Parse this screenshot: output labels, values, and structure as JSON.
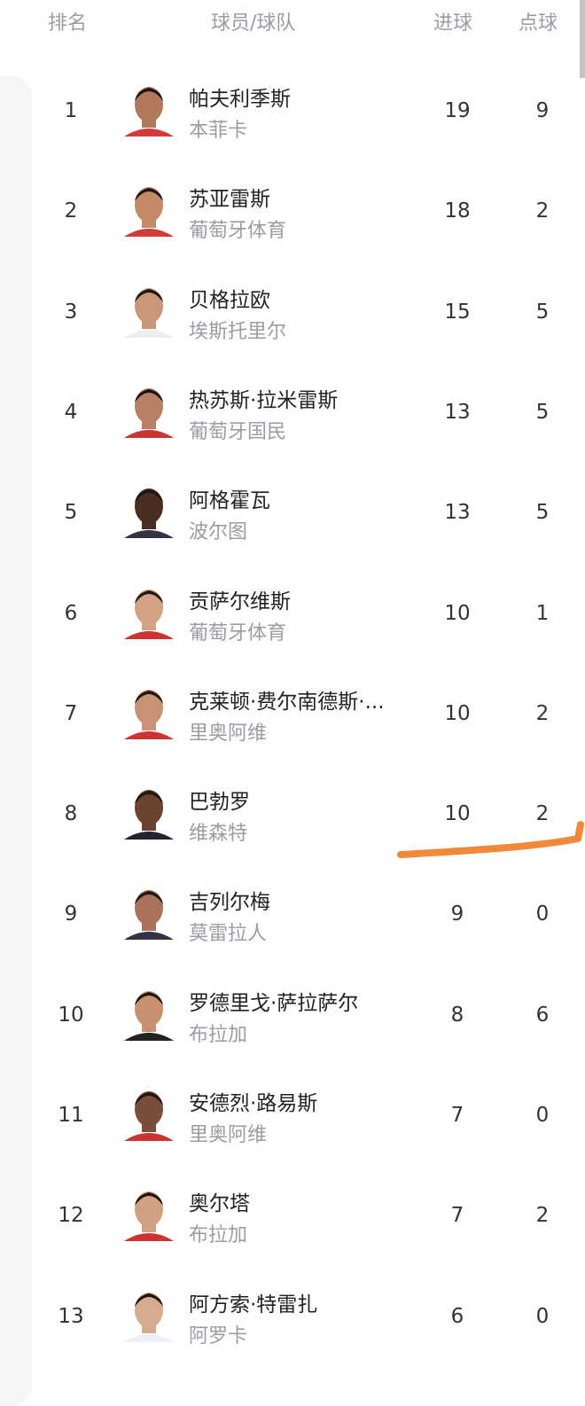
{
  "header": {
    "rank": "排名",
    "player_team": "球员/球队",
    "goals": "进球",
    "penalties": "点球"
  },
  "colors": {
    "annotation": "#f08a3a",
    "team_text": "#9a9ca6"
  },
  "rows": [
    {
      "rank": "1",
      "name": "帕夫利季斯",
      "team": "本菲卡",
      "goals": "19",
      "penalties": "9"
    },
    {
      "rank": "2",
      "name": "苏亚雷斯",
      "team": "葡萄牙体育",
      "goals": "18",
      "penalties": "2"
    },
    {
      "rank": "3",
      "name": "贝格拉欧",
      "team": "埃斯托里尔",
      "goals": "15",
      "penalties": "5"
    },
    {
      "rank": "4",
      "name": "热苏斯·拉米雷斯",
      "team": "葡萄牙国民",
      "goals": "13",
      "penalties": "5"
    },
    {
      "rank": "5",
      "name": "阿格霍瓦",
      "team": "波尔图",
      "goals": "13",
      "penalties": "5"
    },
    {
      "rank": "6",
      "name": "贡萨尔维斯",
      "team": "葡萄牙体育",
      "goals": "10",
      "penalties": "1"
    },
    {
      "rank": "7",
      "name": "克莱顿·费尔南德斯·...",
      "team": "里奥阿维",
      "goals": "10",
      "penalties": "2"
    },
    {
      "rank": "8",
      "name": "巴勃罗",
      "team": "维森特",
      "goals": "10",
      "penalties": "2"
    },
    {
      "rank": "9",
      "name": "吉列尔梅",
      "team": "莫雷拉人",
      "goals": "9",
      "penalties": "0"
    },
    {
      "rank": "10",
      "name": "罗德里戈·萨拉萨尔",
      "team": "布拉加",
      "goals": "8",
      "penalties": "6"
    },
    {
      "rank": "11",
      "name": "安德烈·路易斯",
      "team": "里奥阿维",
      "goals": "7",
      "penalties": "0"
    },
    {
      "rank": "12",
      "name": "奥尔塔",
      "team": "布拉加",
      "goals": "7",
      "penalties": "2"
    },
    {
      "rank": "13",
      "name": "阿方索·特雷扎",
      "team": "阿罗卡",
      "goals": "6",
      "penalties": "0"
    }
  ]
}
